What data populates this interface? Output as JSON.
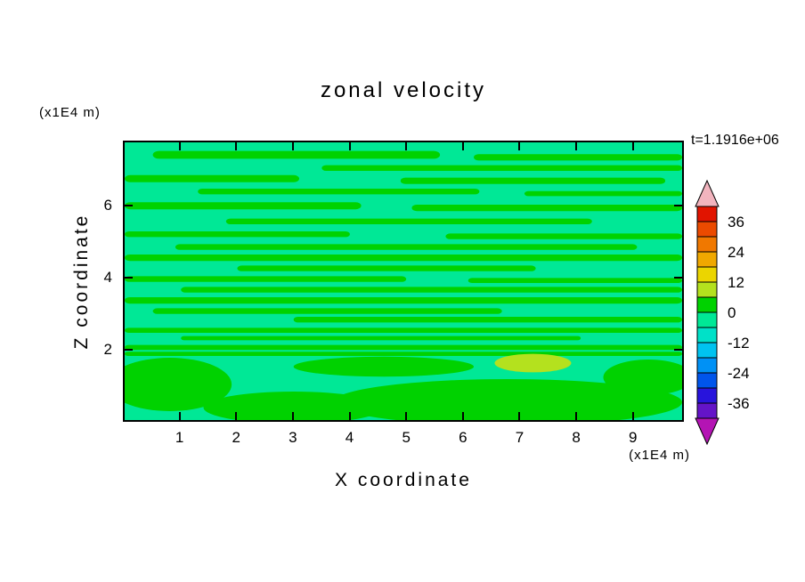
{
  "figure": {
    "title": "zonal velocity",
    "time_label": "t=1.1916e+06",
    "x_axis": {
      "title": "X coordinate",
      "unit": "(x1E4 m)",
      "ticks": [
        "1",
        "2",
        "3",
        "4",
        "5",
        "6",
        "7",
        "8",
        "9"
      ]
    },
    "y_axis": {
      "title": "Z coordinate",
      "unit": "(x1E4 m)",
      "ticks": [
        "2",
        "4",
        "6"
      ]
    }
  },
  "chart_data": {
    "type": "heatmap",
    "title": "zonal velocity",
    "annotation": "t=1.1916e+06",
    "xlabel": "X coordinate (x1E4 m)",
    "ylabel": "Z coordinate (x1E4 m)",
    "xlim": [
      0,
      9.9
    ],
    "ylim": [
      0,
      7.8
    ],
    "x_ticks": [
      1,
      2,
      3,
      4,
      5,
      6,
      7,
      8,
      9
    ],
    "y_ticks": [
      2,
      4,
      6
    ],
    "contour_interval": 6,
    "levels": [
      -42,
      -36,
      -30,
      -24,
      -18,
      -12,
      -6,
      0,
      6,
      12,
      18,
      24,
      30,
      36,
      42
    ],
    "colorbar": {
      "labels": [
        "36",
        "24",
        "12",
        "0",
        "-12",
        "-24",
        "-36"
      ],
      "band_colors_top_to_bottom": [
        "#e11400",
        "#eb4a00",
        "#f07800",
        "#f0a800",
        "#ebd500",
        "#b4e11e",
        "#00d200",
        "#00e896",
        "#00e1c8",
        "#00c3f0",
        "#0091f5",
        "#0055eb",
        "#2814dc",
        "#6414c8"
      ],
      "over_arrow_color": "#f2b4be",
      "under_arrow_color": "#b414b4"
    },
    "colors": {
      "background": "#00e896",
      "streak": "#00d200",
      "spot": "#b4e11e"
    },
    "field_summary": "Zonal velocity mostly between -6 and +6 m/s: alternating thin horizontal bands of the -6..0 color (#00e896) and the 0..6 color (#00d200) across the whole domain; broader smooth regions below z=2; one small 6..12 maximum (yellow-green spot) near x=7.3, z=1.6.",
    "streaks_format": "[x_start, x_end, z_center, thickness] in axis units, filled with colors.streak",
    "streaks": [
      [
        0.5,
        5.6,
        7.45,
        0.22
      ],
      [
        6.2,
        9.9,
        7.38,
        0.18
      ],
      [
        3.5,
        9.9,
        7.08,
        0.16
      ],
      [
        0,
        3.1,
        6.78,
        0.2
      ],
      [
        4.9,
        9.6,
        6.72,
        0.18
      ],
      [
        1.3,
        6.3,
        6.42,
        0.16
      ],
      [
        7.1,
        9.9,
        6.36,
        0.14
      ],
      [
        0,
        4.2,
        6.02,
        0.2
      ],
      [
        5.1,
        9.9,
        5.96,
        0.18
      ],
      [
        1.8,
        8.3,
        5.58,
        0.16
      ],
      [
        0,
        4.0,
        5.22,
        0.16
      ],
      [
        5.7,
        9.9,
        5.16,
        0.16
      ],
      [
        0.9,
        9.1,
        4.86,
        0.16
      ],
      [
        0,
        9.9,
        4.56,
        0.18
      ],
      [
        2.0,
        7.3,
        4.26,
        0.16
      ],
      [
        0,
        5.0,
        3.96,
        0.16
      ],
      [
        6.1,
        9.9,
        3.92,
        0.14
      ],
      [
        1.0,
        9.9,
        3.66,
        0.16
      ],
      [
        0,
        9.9,
        3.36,
        0.18
      ],
      [
        0.5,
        6.7,
        3.06,
        0.16
      ],
      [
        3.0,
        9.9,
        2.82,
        0.16
      ],
      [
        0,
        9.9,
        2.52,
        0.14
      ],
      [
        1.0,
        8.1,
        2.3,
        0.12
      ],
      [
        0,
        9.9,
        2.04,
        0.14
      ],
      [
        0,
        9.9,
        1.86,
        0.12
      ]
    ],
    "blobs_format": "[center_x, center_z, radius_x, radius_z] in axis units, filled with colors.streak",
    "blobs": [
      [
        0.8,
        1.0,
        1.1,
        0.75
      ],
      [
        4.6,
        1.5,
        1.6,
        0.28
      ],
      [
        6.8,
        0.5,
        3.1,
        0.65
      ],
      [
        3.0,
        0.35,
        1.6,
        0.45
      ],
      [
        9.3,
        1.2,
        0.8,
        0.5
      ]
    ],
    "yellow_spot": {
      "x": 7.25,
      "z": 1.6,
      "rx": 0.68,
      "rz": 0.26
    }
  }
}
